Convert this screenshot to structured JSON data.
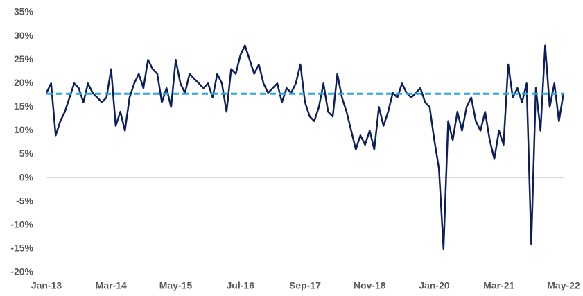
{
  "chart_data": {
    "type": "line",
    "categories": [
      "Jan-13",
      null,
      null,
      null,
      null,
      null,
      null,
      null,
      null,
      null,
      null,
      null,
      null,
      null,
      "Mar-14",
      null,
      null,
      null,
      null,
      null,
      null,
      null,
      null,
      null,
      null,
      null,
      null,
      null,
      "May-15",
      null,
      null,
      null,
      null,
      null,
      null,
      null,
      null,
      null,
      null,
      null,
      null,
      null,
      "Jul-16",
      null,
      null,
      null,
      null,
      null,
      null,
      null,
      null,
      null,
      null,
      null,
      null,
      null,
      "Sep-17",
      null,
      null,
      null,
      null,
      null,
      null,
      null,
      null,
      null,
      null,
      null,
      null,
      null,
      "Nov-18",
      null,
      null,
      null,
      null,
      null,
      null,
      null,
      null,
      null,
      null,
      null,
      null,
      null,
      "Jan-20",
      null,
      null,
      null,
      null,
      null,
      null,
      null,
      null,
      null,
      null,
      null,
      null,
      null,
      "Mar-21",
      null,
      null,
      null,
      null,
      null,
      null,
      null,
      null,
      null,
      null,
      null,
      null,
      null,
      "May-22"
    ],
    "series": [
      {
        "color": "#0b1f5c",
        "values": [
          18,
          20,
          9,
          12,
          14,
          17,
          20,
          19,
          16,
          20,
          18,
          17,
          16,
          17,
          23,
          11,
          14,
          10,
          17,
          20,
          22,
          19,
          25,
          23,
          22,
          16,
          19,
          15,
          25,
          20,
          18,
          22,
          21,
          20,
          19,
          20,
          17,
          22,
          20,
          14,
          23,
          22,
          26,
          28,
          25,
          22,
          24,
          20,
          18,
          19,
          20,
          16,
          19,
          18,
          20,
          24,
          16,
          13,
          12,
          15,
          20,
          14,
          13,
          22,
          17,
          14,
          10,
          6,
          9,
          7,
          10,
          6,
          15,
          11,
          14,
          18,
          17,
          20,
          18,
          17,
          18,
          19,
          16,
          15,
          8,
          2,
          -15,
          12,
          8,
          14,
          10,
          15,
          17,
          12,
          10,
          14,
          8,
          4,
          10,
          7,
          24,
          17,
          19,
          16,
          20,
          -14,
          19,
          10,
          28,
          15,
          20,
          12,
          18
        ]
      }
    ],
    "reference_line": {
      "value": 17.8,
      "color": "#29a8e0"
    },
    "ylim": [
      -20,
      35
    ],
    "yticks": [
      {
        "value": -20,
        "label": "-20%"
      },
      {
        "value": -15,
        "label": "-15%"
      },
      {
        "value": -10,
        "label": "-10%"
      },
      {
        "value": -5,
        "label": "-5%"
      },
      {
        "value": 0,
        "label": "0%"
      },
      {
        "value": 5,
        "label": "5%"
      },
      {
        "value": 10,
        "label": "10%"
      },
      {
        "value": 15,
        "label": "15%"
      },
      {
        "value": 20,
        "label": "20%"
      },
      {
        "value": 25,
        "label": "25%"
      },
      {
        "value": 30,
        "label": "30%"
      },
      {
        "value": 35,
        "label": "35%"
      }
    ],
    "grid": false
  }
}
